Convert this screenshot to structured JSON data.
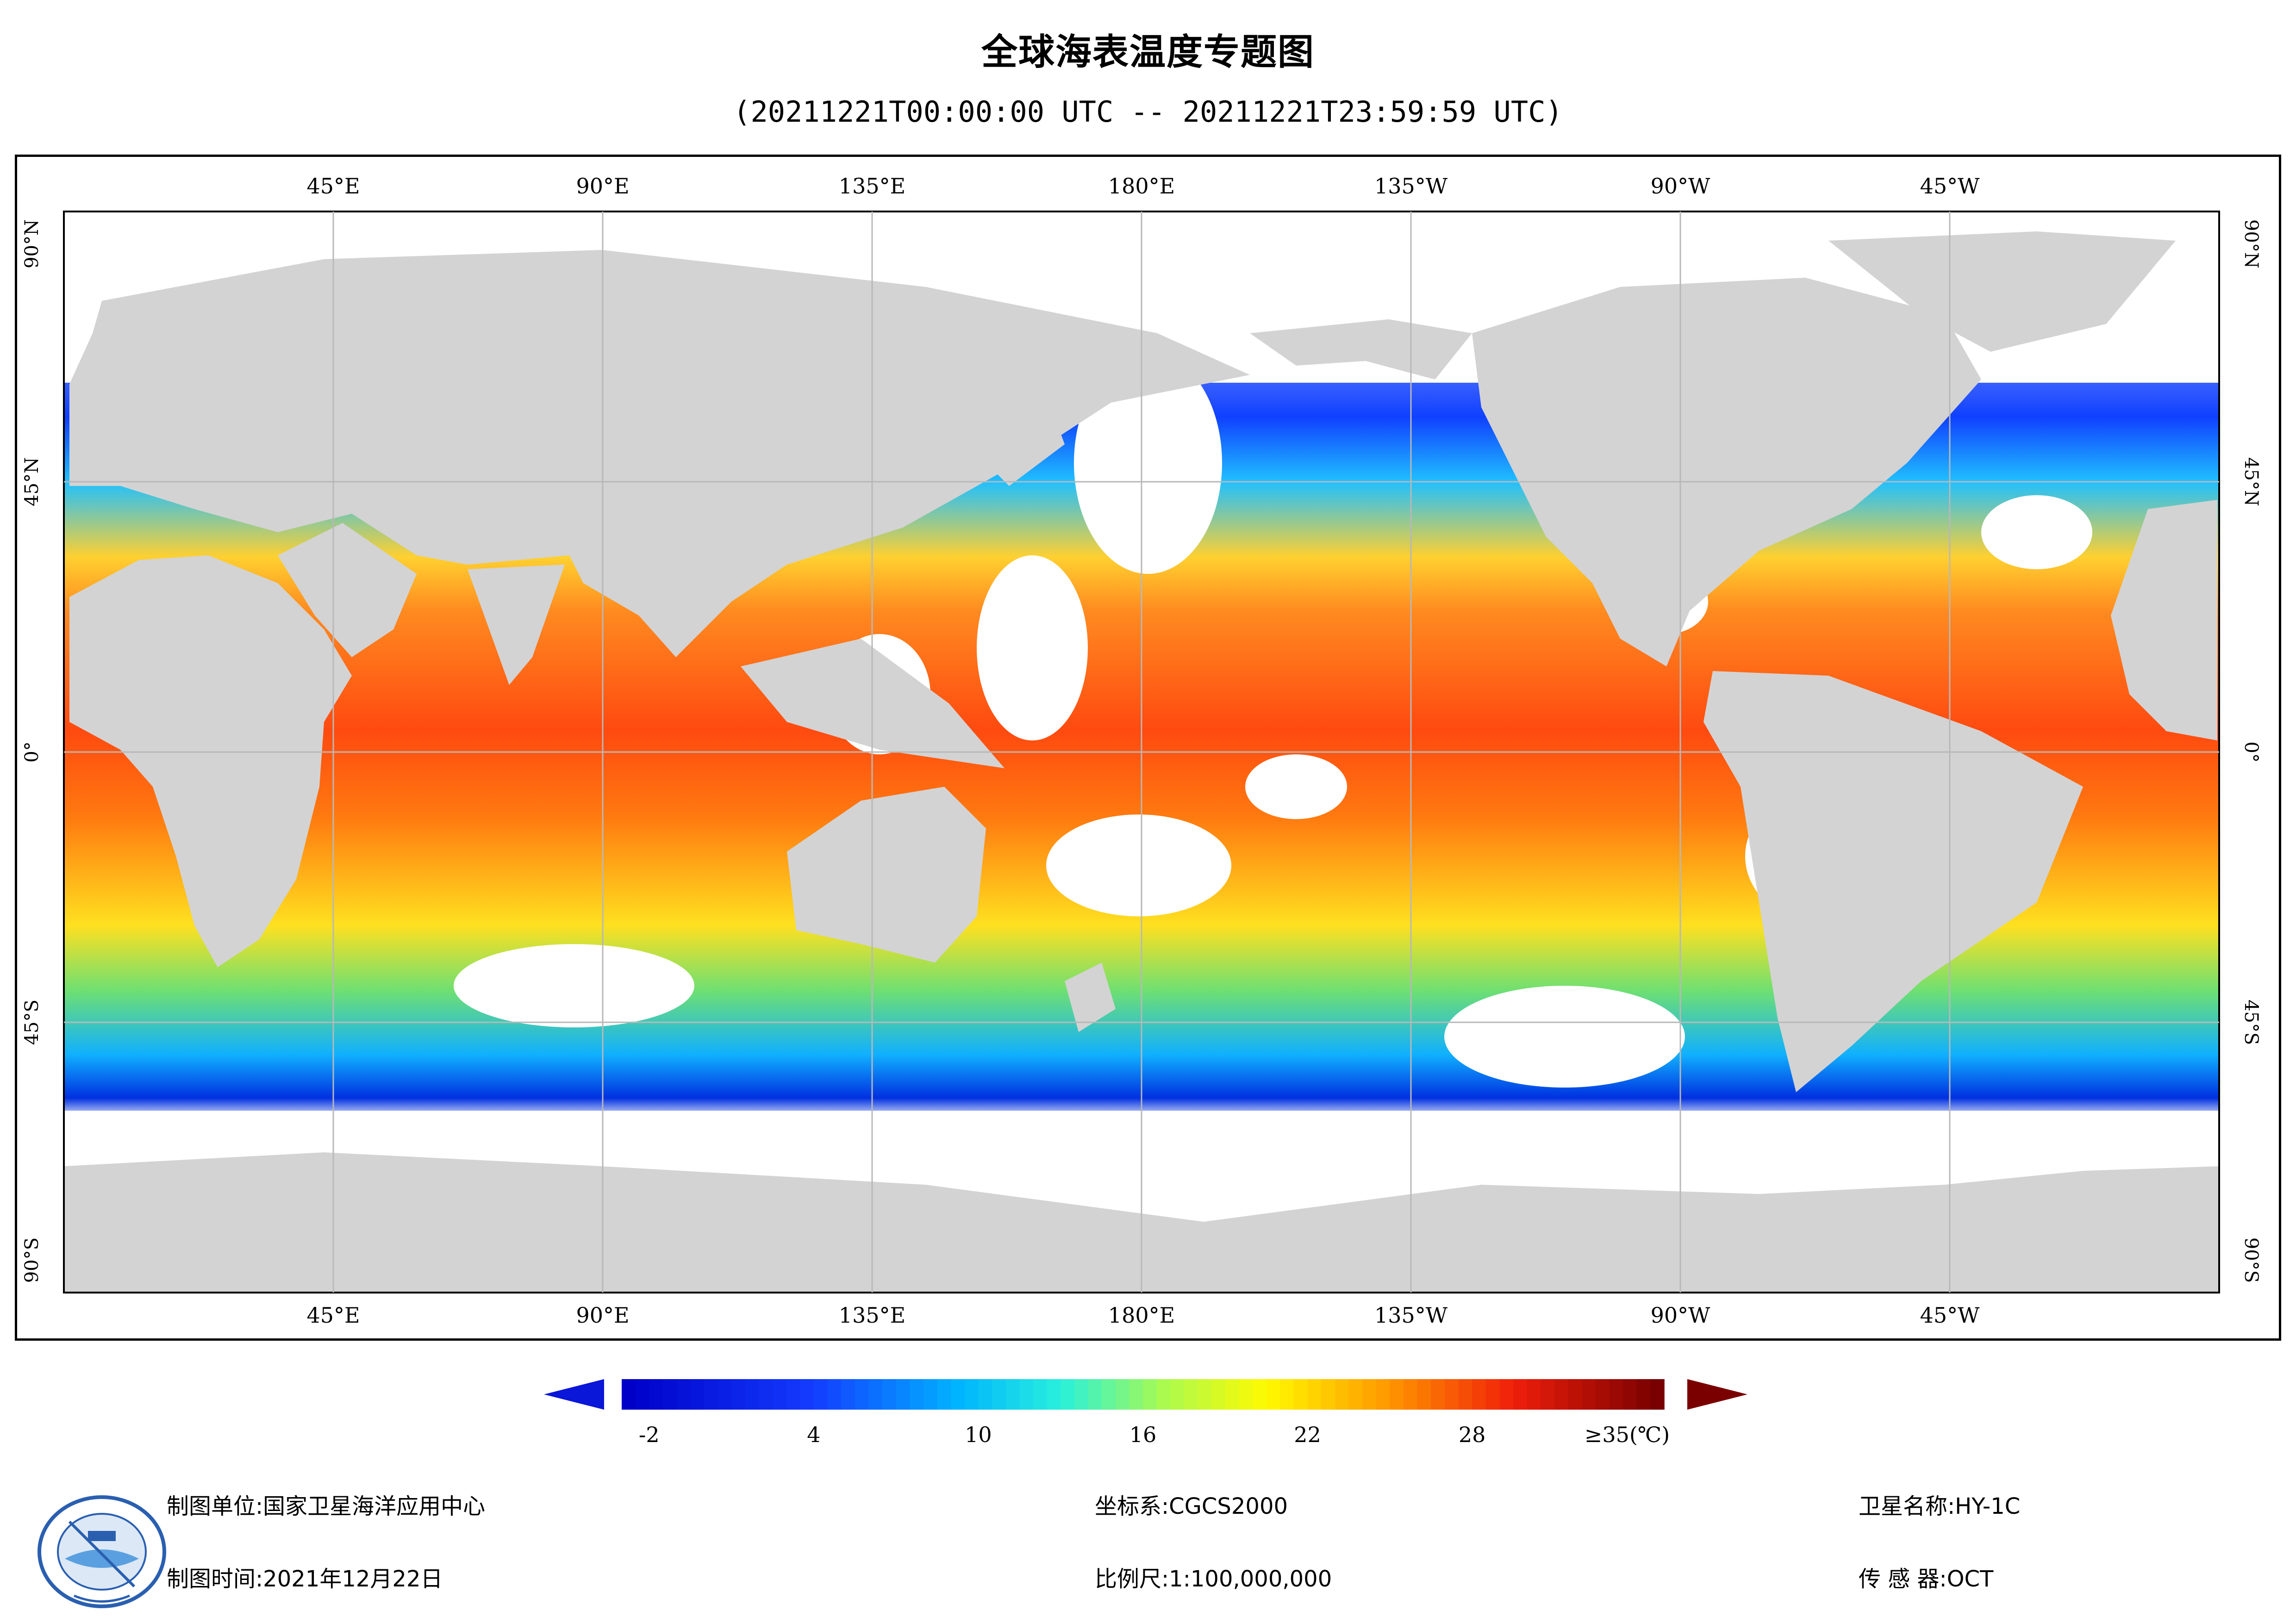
{
  "title": "全球海表温度专题图",
  "subtitle": "(20211221T00:00:00 UTC -- 20211221T23:59:59 UTC)",
  "map": {
    "top_lon_labels": [
      "45°E",
      "90°E",
      "135°E",
      "180°E",
      "135°W",
      "90°W",
      "45°W"
    ],
    "bottom_lon_labels": [
      "45°E",
      "90°E",
      "135°E",
      "180°E",
      "135°W",
      "90°W",
      "45°W"
    ],
    "lat_labels_left": [
      "90°N",
      "45°N",
      "0°",
      "45°S",
      "90°S"
    ],
    "lat_labels_right": [
      "90°N",
      "45°N",
      "0°",
      "45°S",
      "90°S"
    ],
    "land_color": "#d3d3d3",
    "no_data_color": "#ffffff",
    "grid_color": "#b8b8b8"
  },
  "colorbar": {
    "tick_labels": [
      "-2",
      "4",
      "10",
      "16",
      "22",
      "28",
      "≥35(℃)"
    ],
    "tick_values": [
      -2,
      4,
      10,
      16,
      22,
      28,
      35
    ],
    "range": [
      -3,
      35
    ],
    "under_color": "#0a16d8",
    "over_color": "#7a0000"
  },
  "footer": {
    "unit": "制图单位:国家卫星海洋应用中心",
    "time": "制图时间:2021年12月22日",
    "crs": "坐标系:CGCS2000",
    "scale": "比例尺:1:100,000,000",
    "satellite": "卫星名称:HY-1C",
    "sensor": "传 感 器:OCT"
  }
}
